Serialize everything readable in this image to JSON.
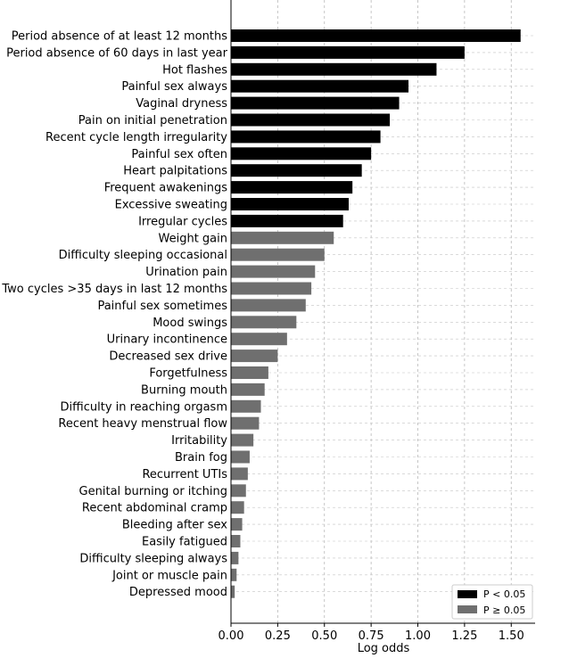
{
  "chart_data": {
    "type": "bar",
    "orientation": "horizontal",
    "xlabel": "Log odds",
    "xlim": [
      0,
      1.6
    ],
    "xticks": [
      0.0,
      0.25,
      0.5,
      0.75,
      1.0,
      1.25,
      1.5
    ],
    "xtick_labels": [
      "0.00",
      "0.25",
      "0.50",
      "0.75",
      "1.00",
      "1.25",
      "1.50"
    ],
    "grid": true,
    "legend_position": "bottom-right",
    "legend": [
      {
        "label": "P < 0.05",
        "color": "#000000"
      },
      {
        "label": "P ≥ 0.05",
        "color": "#6f6f6f"
      }
    ],
    "categories": [
      "Period absence of at least 12 months",
      "Period absence of 60 days in last year",
      "Hot flashes",
      "Painful sex always",
      "Vaginal dryness",
      "Pain on initial penetration",
      "Recent cycle length irregularity",
      "Painful sex often",
      "Heart palpitations",
      "Frequent awakenings",
      "Excessive sweating",
      "Irregular cycles",
      "Weight gain",
      "Difficulty sleeping occasional",
      "Urination pain",
      "Two cycles >35 days in last 12 months",
      "Painful sex sometimes",
      "Mood swings",
      "Urinary incontinence",
      "Decreased sex drive",
      "Forgetfulness",
      "Burning mouth",
      "Difficulty in reaching orgasm",
      "Recent heavy menstrual flow",
      "Irritability",
      "Brain fog",
      "Recurrent UTIs",
      "Genital burning or itching",
      "Recent abdominal cramp",
      "Bleeding after sex",
      "Easily fatigued",
      "Difficulty sleeping always",
      "Joint or muscle pain",
      "Depressed mood"
    ],
    "values": [
      1.55,
      1.25,
      1.1,
      0.95,
      0.9,
      0.85,
      0.8,
      0.75,
      0.7,
      0.65,
      0.63,
      0.6,
      0.55,
      0.5,
      0.45,
      0.43,
      0.4,
      0.35,
      0.3,
      0.25,
      0.2,
      0.18,
      0.16,
      0.15,
      0.12,
      0.1,
      0.09,
      0.08,
      0.07,
      0.06,
      0.05,
      0.04,
      0.03,
      0.02
    ],
    "significant": [
      true,
      true,
      true,
      true,
      true,
      true,
      true,
      true,
      true,
      true,
      true,
      true,
      false,
      false,
      false,
      false,
      false,
      false,
      false,
      false,
      false,
      false,
      false,
      false,
      false,
      false,
      false,
      false,
      false,
      false,
      false,
      false,
      false,
      false
    ]
  }
}
